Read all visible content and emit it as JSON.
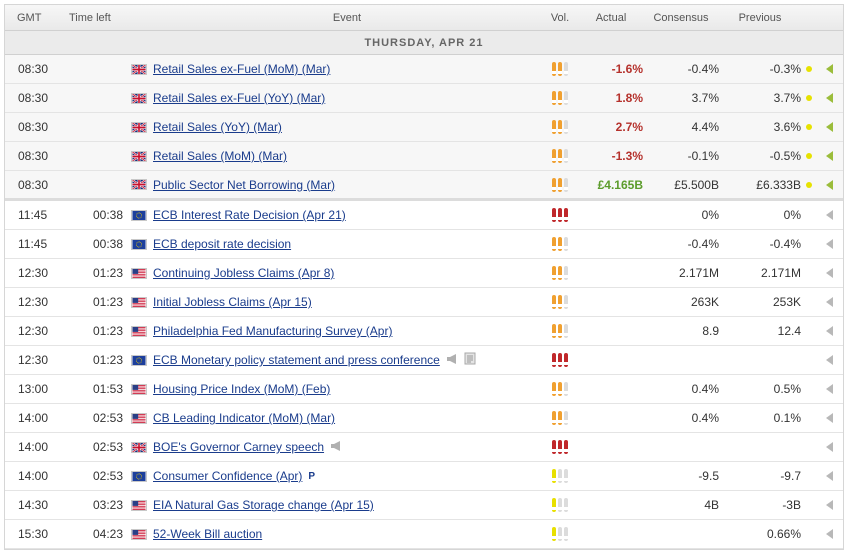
{
  "headers": {
    "gmt": "GMT",
    "time_left": "Time left",
    "event": "Event",
    "vol": "Vol.",
    "actual": "Actual",
    "consensus": "Consensus",
    "previous": "Previous"
  },
  "day_label": "THURSDAY, APR 21",
  "colors": {
    "link": "#1a3c8c",
    "negative": "#b5312c",
    "positive": "#5c9c2c",
    "vol_orange": "#f0a030",
    "vol_red": "#c0282b",
    "vol_yellow": "#e8e000"
  },
  "rows": [
    {
      "gmt": "08:30",
      "left": "",
      "flag": "uk",
      "event": "Retail Sales ex-Fuel (MoM) (Mar)",
      "vol": "medium",
      "actual": "-1.6%",
      "actual_tone": "neg",
      "consensus": "-0.4%",
      "previous": "-0.3%",
      "past": true,
      "icons": []
    },
    {
      "gmt": "08:30",
      "left": "",
      "flag": "uk",
      "event": "Retail Sales ex-Fuel (YoY) (Mar)",
      "vol": "medium",
      "actual": "1.8%",
      "actual_tone": "neg",
      "consensus": "3.7%",
      "previous": "3.7%",
      "past": true,
      "icons": []
    },
    {
      "gmt": "08:30",
      "left": "",
      "flag": "uk",
      "event": "Retail Sales (YoY) (Mar)",
      "vol": "medium",
      "actual": "2.7%",
      "actual_tone": "neg",
      "consensus": "4.4%",
      "previous": "3.6%",
      "past": true,
      "icons": []
    },
    {
      "gmt": "08:30",
      "left": "",
      "flag": "uk",
      "event": "Retail Sales (MoM) (Mar)",
      "vol": "medium",
      "actual": "-1.3%",
      "actual_tone": "neg",
      "consensus": "-0.1%",
      "previous": "-0.5%",
      "past": true,
      "icons": []
    },
    {
      "gmt": "08:30",
      "left": "",
      "flag": "uk",
      "event": "Public Sector Net Borrowing (Mar)",
      "vol": "medium",
      "actual": "£4.165B",
      "actual_tone": "pos",
      "consensus": "£5.500B",
      "previous": "£6.333B",
      "past": true,
      "icons": []
    },
    {
      "gmt": "11:45",
      "left": "00:38",
      "flag": "eu",
      "event": "ECB Interest Rate Decision (Apr 21)",
      "vol": "high",
      "actual": "",
      "actual_tone": "",
      "consensus": "0%",
      "previous": "0%",
      "past": false,
      "icons": []
    },
    {
      "gmt": "11:45",
      "left": "00:38",
      "flag": "eu",
      "event": "ECB deposit rate decision",
      "vol": "medium",
      "actual": "",
      "actual_tone": "",
      "consensus": "-0.4%",
      "previous": "-0.4%",
      "past": false,
      "icons": []
    },
    {
      "gmt": "12:30",
      "left": "01:23",
      "flag": "us",
      "event": "Continuing Jobless Claims (Apr 8)",
      "vol": "medium",
      "actual": "",
      "actual_tone": "",
      "consensus": "2.171M",
      "previous": "2.171M",
      "past": false,
      "icons": []
    },
    {
      "gmt": "12:30",
      "left": "01:23",
      "flag": "us",
      "event": "Initial Jobless Claims (Apr 15)",
      "vol": "medium",
      "actual": "",
      "actual_tone": "",
      "consensus": "263K",
      "previous": "253K",
      "past": false,
      "icons": []
    },
    {
      "gmt": "12:30",
      "left": "01:23",
      "flag": "us",
      "event": "Philadelphia Fed Manufacturing Survey (Apr)",
      "vol": "medium",
      "actual": "",
      "actual_tone": "",
      "consensus": "8.9",
      "previous": "12.4",
      "past": false,
      "icons": []
    },
    {
      "gmt": "12:30",
      "left": "01:23",
      "flag": "eu",
      "event": "ECB Monetary policy statement and press conference",
      "vol": "high",
      "actual": "",
      "actual_tone": "",
      "consensus": "",
      "previous": "",
      "past": false,
      "icons": [
        "speech",
        "report"
      ]
    },
    {
      "gmt": "13:00",
      "left": "01:53",
      "flag": "us",
      "event": "Housing Price Index (MoM) (Feb)",
      "vol": "medium",
      "actual": "",
      "actual_tone": "",
      "consensus": "0.4%",
      "previous": "0.5%",
      "past": false,
      "icons": []
    },
    {
      "gmt": "14:00",
      "left": "02:53",
      "flag": "us",
      "event": "CB Leading Indicator (MoM) (Mar)",
      "vol": "medium",
      "actual": "",
      "actual_tone": "",
      "consensus": "0.4%",
      "previous": "0.1%",
      "past": false,
      "icons": []
    },
    {
      "gmt": "14:00",
      "left": "02:53",
      "flag": "uk",
      "event": "BOE's Governor Carney speech",
      "vol": "high",
      "actual": "",
      "actual_tone": "",
      "consensus": "",
      "previous": "",
      "past": false,
      "icons": [
        "speech"
      ]
    },
    {
      "gmt": "14:00",
      "left": "02:53",
      "flag": "eu",
      "event": "Consumer Confidence (Apr)",
      "vol": "low",
      "actual": "",
      "actual_tone": "",
      "consensus": "-9.5",
      "previous": "-9.7",
      "past": false,
      "icons": [
        "preliminary"
      ]
    },
    {
      "gmt": "14:30",
      "left": "03:23",
      "flag": "us",
      "event": "EIA Natural Gas Storage change (Apr 15)",
      "vol": "low",
      "actual": "",
      "actual_tone": "",
      "consensus": "4B",
      "previous": "-3B",
      "past": false,
      "icons": []
    },
    {
      "gmt": "15:30",
      "left": "04:23",
      "flag": "us",
      "event": "52-Week Bill auction",
      "vol": "low",
      "actual": "",
      "actual_tone": "",
      "consensus": "",
      "previous": "0.66%",
      "past": false,
      "icons": []
    }
  ],
  "preliminary_mark": "P"
}
